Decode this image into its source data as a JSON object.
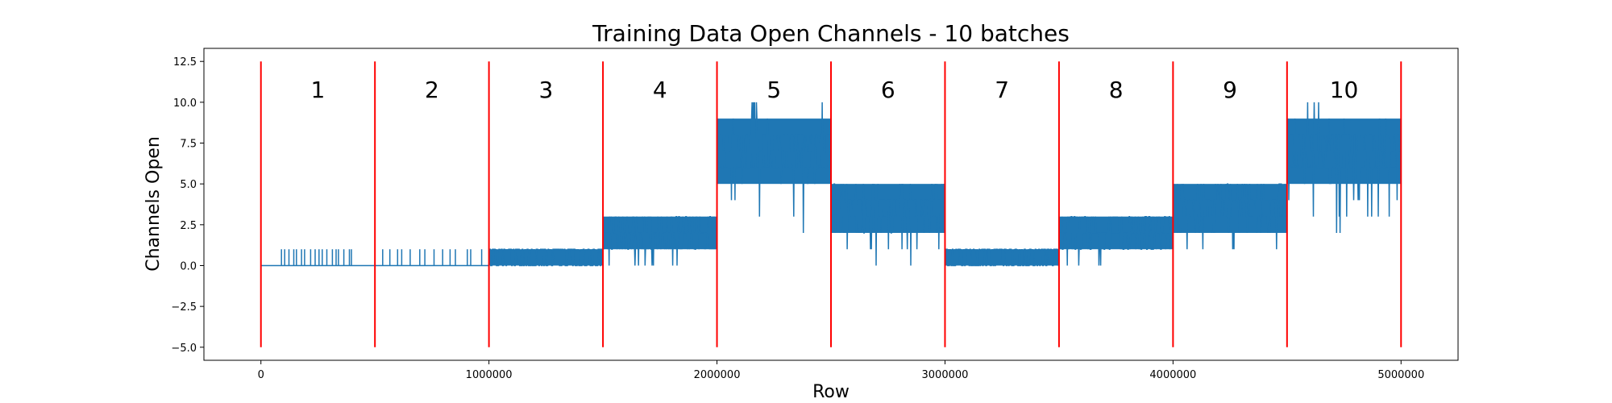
{
  "chart_data": {
    "type": "line",
    "title": "Training Data Open Channels - 10 batches",
    "xlabel": "Row",
    "ylabel": "Channels Open",
    "xlim": [
      -250000,
      5250000
    ],
    "ylim": [
      -5.8,
      13.3
    ],
    "xticks": [
      0,
      1000000,
      2000000,
      3000000,
      4000000,
      5000000
    ],
    "xtick_labels": [
      "0",
      "1000000",
      "2000000",
      "3000000",
      "4000000",
      "5000000"
    ],
    "yticks": [
      -5.0,
      -2.5,
      0.0,
      2.5,
      5.0,
      7.5,
      10.0,
      12.5
    ],
    "ytick_labels": [
      "−5.0",
      "−2.5",
      "0.0",
      "2.5",
      "5.0",
      "7.5",
      "10.0",
      "12.5"
    ],
    "grid": false,
    "series_color": "#1f77b4",
    "boundary_color": "#ff0000",
    "batch_boundaries": {
      "x": [
        0,
        500000,
        1000000,
        1500000,
        2000000,
        2500000,
        3000000,
        3500000,
        4000000,
        4500000,
        5000000
      ],
      "y_range": [
        -5,
        12.5
      ]
    },
    "batch_labels": {
      "labels": [
        "1",
        "2",
        "3",
        "4",
        "5",
        "6",
        "7",
        "8",
        "9",
        "10"
      ],
      "x": [
        250000,
        750000,
        1250000,
        1750000,
        2250000,
        2750000,
        3250000,
        3750000,
        4250000,
        4750000
      ],
      "y": 10.3
    },
    "batches": [
      {
        "batch": "1",
        "x_range": [
          0,
          500000
        ],
        "min": 0,
        "max": 1,
        "band_low": 0,
        "band_high": 0,
        "typical": 0
      },
      {
        "batch": "2",
        "x_range": [
          500000,
          1000000
        ],
        "min": 0,
        "max": 1,
        "band_low": 0,
        "band_high": 0,
        "typical": 0
      },
      {
        "batch": "3",
        "x_range": [
          1000000,
          1500000
        ],
        "min": 0,
        "max": 1,
        "band_low": 0,
        "band_high": 1,
        "typical": 0.5
      },
      {
        "batch": "4",
        "x_range": [
          1500000,
          2000000
        ],
        "min": 0,
        "max": 3,
        "band_low": 1,
        "band_high": 3,
        "typical": 2
      },
      {
        "batch": "5",
        "x_range": [
          2000000,
          2500000
        ],
        "min": 2,
        "max": 10,
        "band_low": 5,
        "band_high": 9,
        "typical": 7
      },
      {
        "batch": "6",
        "x_range": [
          2500000,
          3000000
        ],
        "min": 0,
        "max": 5,
        "band_low": 2,
        "band_high": 5,
        "typical": 3.5
      },
      {
        "batch": "7",
        "x_range": [
          3000000,
          3500000
        ],
        "min": 0,
        "max": 1,
        "band_low": 0,
        "band_high": 1,
        "typical": 0.5
      },
      {
        "batch": "8",
        "x_range": [
          3500000,
          4000000
        ],
        "min": 0,
        "max": 3,
        "band_low": 1,
        "band_high": 3,
        "typical": 2
      },
      {
        "batch": "9",
        "x_range": [
          4000000,
          4500000
        ],
        "min": 0,
        "max": 5,
        "band_low": 2,
        "band_high": 5,
        "typical": 3.5
      },
      {
        "batch": "10",
        "x_range": [
          4500000,
          5000000
        ],
        "min": 2,
        "max": 10,
        "band_low": 5,
        "band_high": 9,
        "typical": 7
      }
    ]
  }
}
